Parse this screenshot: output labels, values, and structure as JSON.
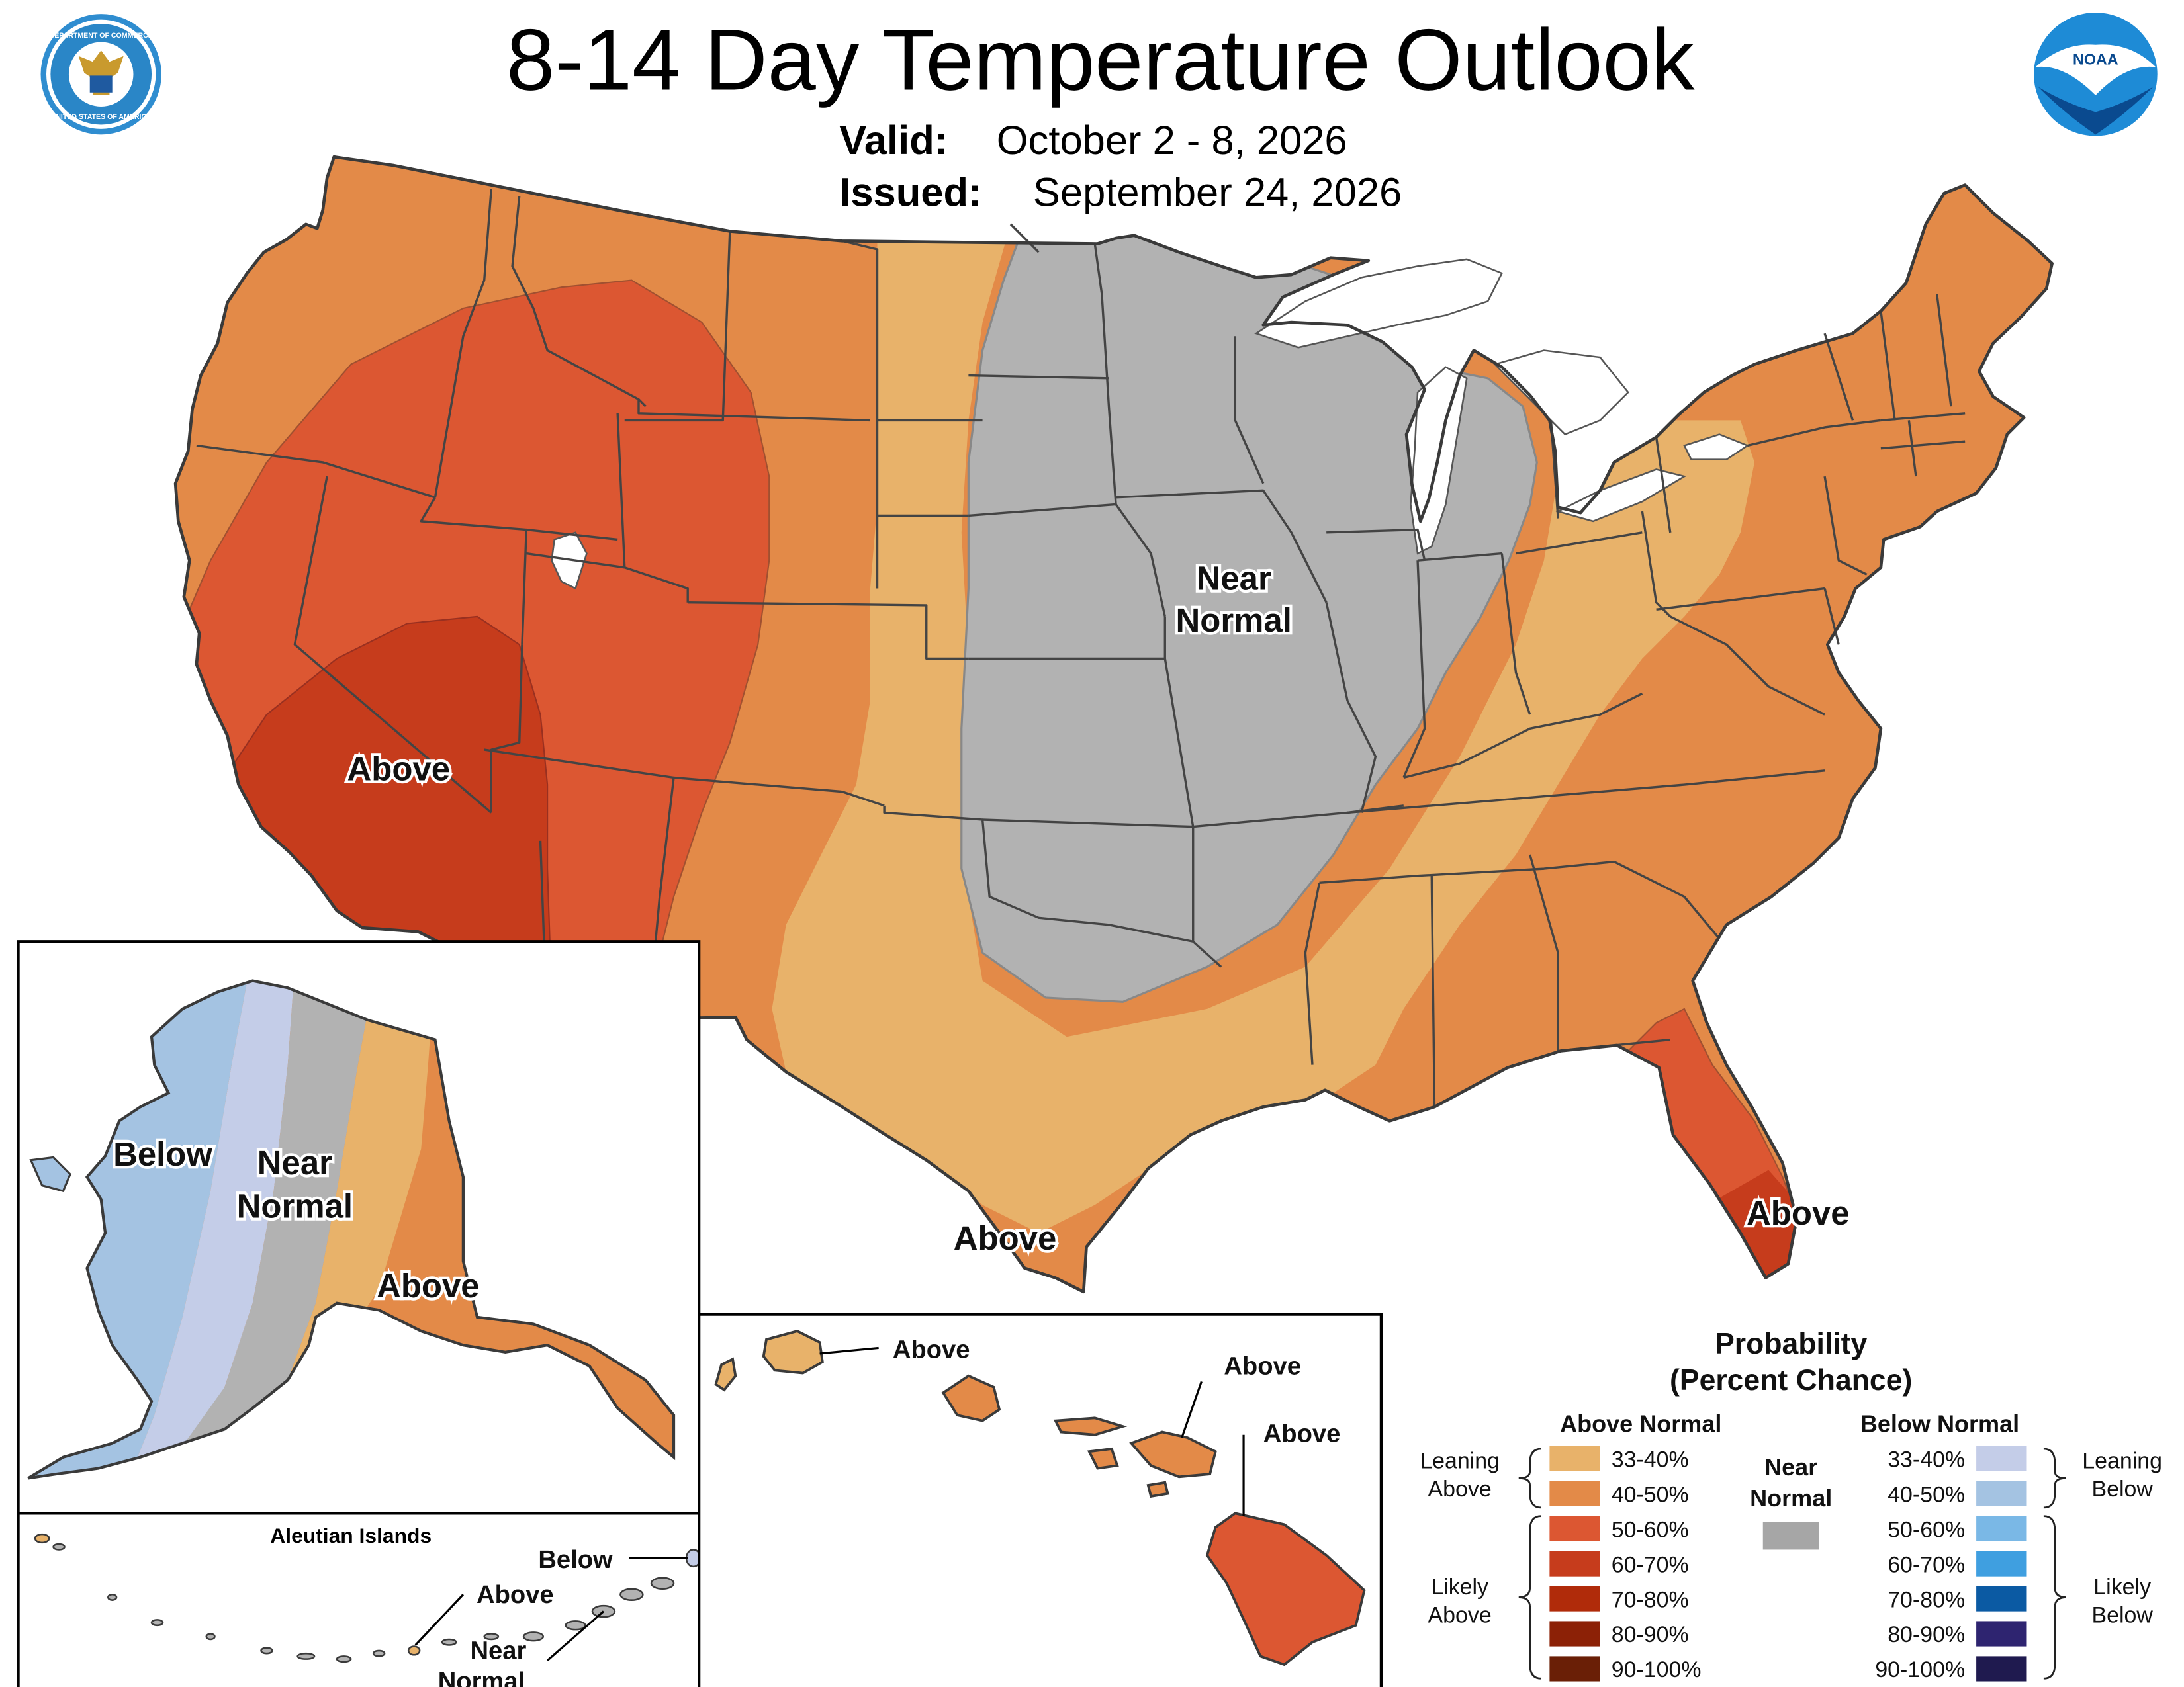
{
  "header": {
    "title": "8-14 Day Temperature Outlook",
    "valid_label": "Valid:",
    "valid_value": "October 2 - 8, 2026",
    "issued_label": "Issued:",
    "issued_value": "September 24, 2026"
  },
  "logos": {
    "doc_text_top": "DEPARTMENT OF COMMERCE",
    "doc_text_bottom": "UNITED STATES OF AMERICA",
    "noaa_text": "NOAA"
  },
  "colors": {
    "above_33_40": "#e8b26a",
    "above_40_50": "#e38a48",
    "above_50_60": "#dc5732",
    "above_60_70": "#c63c1c",
    "above_70_80": "#b02b0a",
    "above_80_90": "#8c2106",
    "above_90_100": "#6a1f06",
    "near_normal": "#a6a6a6",
    "near_normal_map": "#b2b2b2",
    "below_33_40": "#c4cde8",
    "below_40_50": "#a4c3e2",
    "below_50_60": "#7ab8e6",
    "below_60_70": "#3f9fe0",
    "below_70_80": "#0b5aa3",
    "below_80_90": "#2e2470",
    "below_90_100": "#1f1a4f",
    "state_border": "#444444",
    "water": "#ffffff"
  },
  "map_labels": {
    "conus_near_normal_1": "Near",
    "conus_near_normal_2": "Normal",
    "conus_above_west": "Above",
    "conus_above_texas": "Above",
    "conus_above_florida": "Above",
    "alaska_below": "Below",
    "alaska_near_1": "Near",
    "alaska_near_2": "Normal",
    "alaska_above": "Above",
    "aleutian_title": "Aleutian Islands",
    "aleutian_below": "Below",
    "aleutian_above": "Above",
    "aleutian_near_1": "Near",
    "aleutian_near_2": "Normal",
    "hawaii_above_1": "Above",
    "hawaii_above_2": "Above",
    "hawaii_above_3": "Above"
  },
  "legend": {
    "title_1": "Probability",
    "title_2": "(Percent Chance)",
    "above_header": "Above Normal",
    "below_header": "Below Normal",
    "near_1": "Near",
    "near_2": "Normal",
    "leaning_above_1": "Leaning",
    "leaning_above_2": "Above",
    "likely_above_1": "Likely",
    "likely_above_2": "Above",
    "leaning_below_1": "Leaning",
    "leaning_below_2": "Below",
    "likely_below_1": "Likely",
    "likely_below_2": "Below",
    "ranges": [
      "33-40%",
      "40-50%",
      "50-60%",
      "60-70%",
      "70-80%",
      "80-90%",
      "90-100%"
    ]
  }
}
